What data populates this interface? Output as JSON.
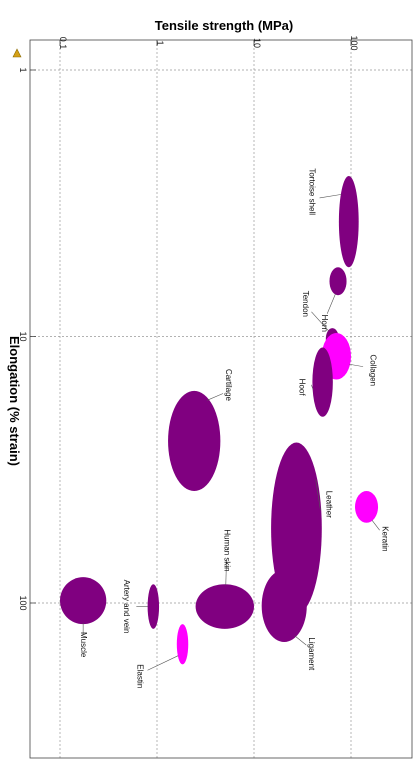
{
  "chart_data": {
    "type": "scatter",
    "subtype": "ashby bubble chart",
    "orientation": "rotated 90 degrees clockwise",
    "xlabel": "Elongation (% strain)",
    "ylabel": "Tensile strength (MPa)",
    "x_scale": "log",
    "y_scale": "log",
    "xlim": [
      1,
      300
    ],
    "ylim": [
      0.07,
      200
    ],
    "x_ticks": [
      {
        "value": 1,
        "label": "1"
      },
      {
        "value": 10,
        "label": "10"
      },
      {
        "value": 100,
        "label": "100"
      }
    ],
    "y_ticks": [
      {
        "value": 0.1,
        "label": "0.1"
      },
      {
        "value": 1,
        "label": "1"
      },
      {
        "value": 10,
        "label": "10"
      },
      {
        "value": 100,
        "label": "100"
      }
    ],
    "grid": true,
    "colors": {
      "purple": "#800080",
      "magenta": "#ff00ff"
    },
    "series": [
      {
        "label": "Tortoise shell",
        "color": "#800080",
        "x": [
          2.5,
          5.5
        ],
        "y": [
          75,
          120
        ]
      },
      {
        "label": "Horn",
        "color": "#800080",
        "x": [
          5.5,
          7.0
        ],
        "y": [
          60,
          90
        ]
      },
      {
        "label": "Tendon",
        "color": "#800080",
        "x": [
          9.3,
          11.2
        ],
        "y": [
          55,
          75
        ]
      },
      {
        "label": "Collagen",
        "color": "#ff00ff",
        "x": [
          9.7,
          14.5
        ],
        "y": [
          50,
          100
        ]
      },
      {
        "label": "Hoof",
        "color": "#800080",
        "x": [
          11,
          20
        ],
        "y": [
          40,
          65
        ]
      },
      {
        "label": "Cartilage",
        "color": "#800080",
        "x": [
          16,
          38
        ],
        "y": [
          1.3,
          4.5
        ]
      },
      {
        "label": "Leather",
        "color": "#800080",
        "x": [
          25,
          110
        ],
        "y": [
          15,
          50
        ]
      },
      {
        "label": "Keratin",
        "color": "#ff00ff",
        "x": [
          38,
          50
        ],
        "y": [
          110,
          190
        ]
      },
      {
        "label": "Elastin",
        "color": "#ff00ff",
        "x": [
          120,
          170
        ],
        "y": [
          1.6,
          2.1
        ]
      },
      {
        "label": "Human skin",
        "color": "#800080",
        "x": [
          85,
          125
        ],
        "y": [
          2.5,
          10
        ]
      },
      {
        "label": "Artery and vein",
        "color": "#800080",
        "x": [
          85,
          125
        ],
        "y": [
          0.8,
          1.05
        ]
      },
      {
        "label": "Muscle",
        "color": "#800080",
        "x": [
          80,
          120
        ],
        "y": [
          0.1,
          0.3
        ]
      },
      {
        "label": "Ligament",
        "color": "#800080",
        "x": [
          75,
          140
        ],
        "y": [
          12,
          35
        ]
      }
    ]
  }
}
